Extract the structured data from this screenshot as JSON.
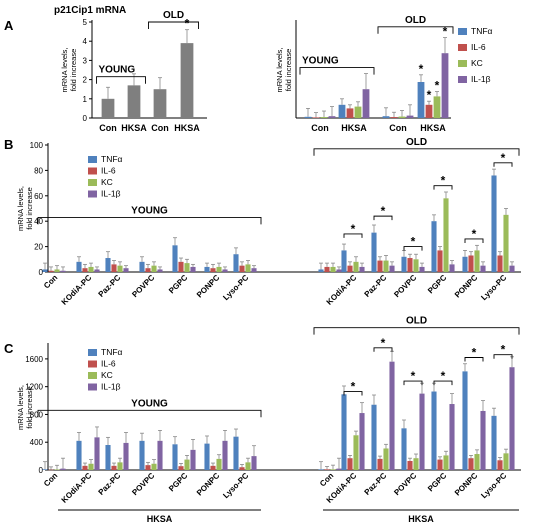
{
  "colors": {
    "TNF": "#4f81bd",
    "IL6": "#c0504d",
    "KC": "#9bbb59",
    "IL1": "#8064a2",
    "gray": "#7f7f7f",
    "axis": "#000000"
  },
  "chart_data": [
    {
      "id": "A1",
      "panel_letter": "A",
      "type": "bar",
      "title": "p21Cip1 mRNA",
      "ylabel": "mRNA levels,\nfold increase",
      "ylim": [
        0,
        5
      ],
      "yticks": [
        0,
        1,
        2,
        3,
        4,
        5
      ],
      "categories": [
        "Con",
        "HKSA",
        "Con",
        "HKSA"
      ],
      "series": [
        {
          "color_key": "gray",
          "values": [
            1.0,
            1.7,
            1.5,
            3.9
          ],
          "errors": [
            0.6,
            0.6,
            0.6,
            0.7
          ]
        }
      ],
      "significance": [
        {
          "cat": 3,
          "series": 0,
          "label": "*"
        }
      ],
      "brackets": [
        {
          "from": 0,
          "to": 1,
          "level": 2.15,
          "label": "YOUNG",
          "label_pos": "above-left",
          "ticks": "down"
        },
        {
          "from": 2,
          "to": 3,
          "level": 5.0,
          "label": "OLD",
          "label_pos": "above",
          "ticks": "down"
        }
      ]
    },
    {
      "id": "A2",
      "type": "bar",
      "ylabel": "mRNA levels,\nfold increase",
      "ylim": [
        0,
        800
      ],
      "yticks": [],
      "categories": [
        "Con",
        "HKSA",
        "Con",
        "HKSA"
      ],
      "legend": {
        "entries": [
          "TNFα",
          "IL-6",
          "KC",
          "IL-1β"
        ],
        "position": "right"
      },
      "series": [
        {
          "name": "TNFα",
          "color_key": "TNF",
          "values": [
            10,
            110,
            15,
            300
          ],
          "errors": [
            70,
            50,
            70,
            60
          ]
        },
        {
          "name": "IL-6",
          "color_key": "IL6",
          "values": [
            5,
            80,
            8,
            110
          ],
          "errors": [
            40,
            30,
            40,
            30
          ]
        },
        {
          "name": "KC",
          "color_key": "KC",
          "values": [
            8,
            95,
            12,
            180
          ],
          "errors": [
            50,
            40,
            50,
            40
          ]
        },
        {
          "name": "IL-1β",
          "color_key": "IL1",
          "values": [
            15,
            240,
            20,
            540
          ],
          "errors": [
            80,
            130,
            90,
            130
          ]
        }
      ],
      "significance": [
        {
          "cat": 3,
          "series": 0,
          "label": "*"
        },
        {
          "cat": 3,
          "series": 1,
          "label": "*"
        },
        {
          "cat": 3,
          "series": 2,
          "label": "*"
        },
        {
          "cat": 3,
          "series": 3,
          "label": "*"
        }
      ],
      "brackets": [
        {
          "from": 0,
          "to": 1,
          "level": 420,
          "label": "YOUNG",
          "label_pos": "above-left",
          "ticks": "down"
        },
        {
          "from": 2,
          "to": 3,
          "level": 760,
          "label": "OLD",
          "label_pos": "above",
          "ticks": "down"
        }
      ]
    },
    {
      "id": "B",
      "panel_letter": "B",
      "type": "bar",
      "ylabel": "mRNA levels,\nfold increase",
      "ylim": [
        0,
        100
      ],
      "yticks": [
        0,
        20,
        40,
        60,
        80,
        100
      ],
      "categories": [
        "Con",
        "KOdiA-PC",
        "Paz-PC",
        "POVPC",
        "PGPC",
        "PONPC",
        "Lyso-PC",
        "",
        "KOdiA-PC",
        "Paz-PC",
        "POVPC",
        "PGPC",
        "PONPC",
        "Lyso-PC"
      ],
      "legend": {
        "entries": [
          "TNFα",
          "IL-6",
          "KC",
          "IL-1β"
        ],
        "position": "top-left"
      },
      "series": [
        {
          "name": "TNFα",
          "color_key": "TNF",
          "values": [
            2,
            8,
            11,
            8,
            21,
            4,
            14,
            2,
            17,
            31,
            12,
            40,
            12,
            76
          ],
          "errors": [
            5,
            4,
            5,
            4,
            6,
            3,
            5,
            5,
            5,
            6,
            5,
            5,
            5,
            5
          ]
        },
        {
          "name": "IL-6",
          "color_key": "IL6",
          "values": [
            1,
            3,
            6,
            3,
            8,
            3,
            5,
            4,
            5,
            9,
            11,
            17,
            13,
            13
          ],
          "errors": [
            3,
            3,
            3,
            3,
            3,
            3,
            3,
            3,
            3,
            3,
            3,
            3,
            3,
            3
          ]
        },
        {
          "name": "KC",
          "color_key": "KC",
          "values": [
            2,
            4,
            5,
            5,
            7,
            4,
            6,
            4,
            8,
            9,
            10,
            58,
            17,
            45
          ],
          "errors": [
            3,
            3,
            3,
            3,
            3,
            3,
            3,
            3,
            4,
            4,
            4,
            5,
            4,
            5
          ]
        },
        {
          "name": "IL-1β",
          "color_key": "IL1",
          "values": [
            1,
            2,
            3,
            2,
            4,
            2,
            3,
            2,
            4,
            5,
            4,
            6,
            5,
            5
          ],
          "errors": [
            3,
            2,
            2,
            2,
            2,
            2,
            2,
            2,
            3,
            3,
            3,
            3,
            3,
            3
          ]
        }
      ],
      "sig_brackets": [
        {
          "cat": 8,
          "level": 30,
          "label": "*"
        },
        {
          "cat": 9,
          "level": 44,
          "label": "*"
        },
        {
          "cat": 10,
          "level": 20,
          "label": "*"
        },
        {
          "cat": 11,
          "level": 68,
          "label": "*"
        },
        {
          "cat": 12,
          "level": 26,
          "label": "*"
        },
        {
          "cat": 13,
          "level": 86,
          "label": "*"
        }
      ],
      "brackets": [
        {
          "from": 0,
          "to": 6,
          "level": 43,
          "label": "YOUNG",
          "label_pos": "above",
          "ticks": "down"
        },
        {
          "from": 7,
          "to": 13,
          "level": 97,
          "label": "OLD",
          "label_pos": "above",
          "ticks": "down"
        }
      ]
    },
    {
      "id": "C",
      "panel_letter": "C",
      "type": "bar",
      "ylabel": "mRNA levels,\nfold increase",
      "ylim": [
        0,
        1800
      ],
      "yticks": [
        0,
        400,
        800,
        1200,
        1600
      ],
      "categories": [
        "Con",
        "KOdiA-PC",
        "Paz-PC",
        "POVPC",
        "PGPC",
        "PONPC",
        "Lyso-PC",
        "Con",
        "KOdiA-PC",
        "Paz-PC",
        "POVPC",
        "PGPC",
        "PONPC",
        "Lyso-PC"
      ],
      "legend": {
        "entries": [
          "TNFα",
          "IL-6",
          "KC",
          "IL-1β"
        ],
        "position": "top-left"
      },
      "group_labels": [
        {
          "from": 1,
          "to": 6,
          "label": "HKSA"
        },
        {
          "from": 8,
          "to": 13,
          "label": "HKSA"
        }
      ],
      "series": [
        {
          "name": "TNFα",
          "color_key": "TNF",
          "values": [
            10,
            420,
            360,
            420,
            370,
            380,
            480,
            10,
            1090,
            940,
            600,
            1130,
            1420,
            780
          ],
          "errors": [
            110,
            120,
            110,
            110,
            110,
            110,
            110,
            110,
            120,
            140,
            120,
            120,
            110,
            110
          ]
        },
        {
          "name": "IL-6",
          "color_key": "IL6",
          "values": [
            5,
            60,
            60,
            70,
            55,
            60,
            40,
            10,
            170,
            160,
            130,
            150,
            170,
            140
          ],
          "errors": [
            40,
            40,
            40,
            40,
            40,
            40,
            40,
            40,
            40,
            40,
            40,
            40,
            40,
            40
          ]
        },
        {
          "name": "KC",
          "color_key": "KC",
          "values": [
            8,
            90,
            110,
            90,
            150,
            160,
            110,
            10,
            500,
            310,
            170,
            210,
            230,
            240
          ],
          "errors": [
            60,
            60,
            60,
            60,
            60,
            60,
            60,
            60,
            60,
            60,
            60,
            60,
            60,
            60
          ]
        },
        {
          "name": "IL-1β",
          "color_key": "IL1",
          "values": [
            20,
            470,
            390,
            420,
            290,
            420,
            200,
            20,
            820,
            1560,
            1100,
            950,
            850,
            1480
          ],
          "errors": [
            150,
            150,
            150,
            150,
            150,
            150,
            150,
            150,
            150,
            150,
            150,
            150,
            150,
            150
          ]
        }
      ],
      "sig_brackets": [
        {
          "cat": 8,
          "level": 1130,
          "label": "*"
        },
        {
          "cat": 9,
          "level": 1760,
          "label": "*"
        },
        {
          "cat": 10,
          "level": 1280,
          "label": "*"
        },
        {
          "cat": 11,
          "level": 1280,
          "label": "*"
        },
        {
          "cat": 12,
          "level": 1620,
          "label": "*"
        },
        {
          "cat": 13,
          "level": 1660,
          "label": "*"
        }
      ],
      "brackets": [
        {
          "from": 0,
          "to": 6,
          "level": 860,
          "label": "YOUNG",
          "label_pos": "above",
          "ticks": "down"
        },
        {
          "from": 7,
          "to": 13,
          "level": 2050,
          "label": "OLD",
          "label_pos": "above",
          "ticks": "down"
        }
      ]
    }
  ]
}
